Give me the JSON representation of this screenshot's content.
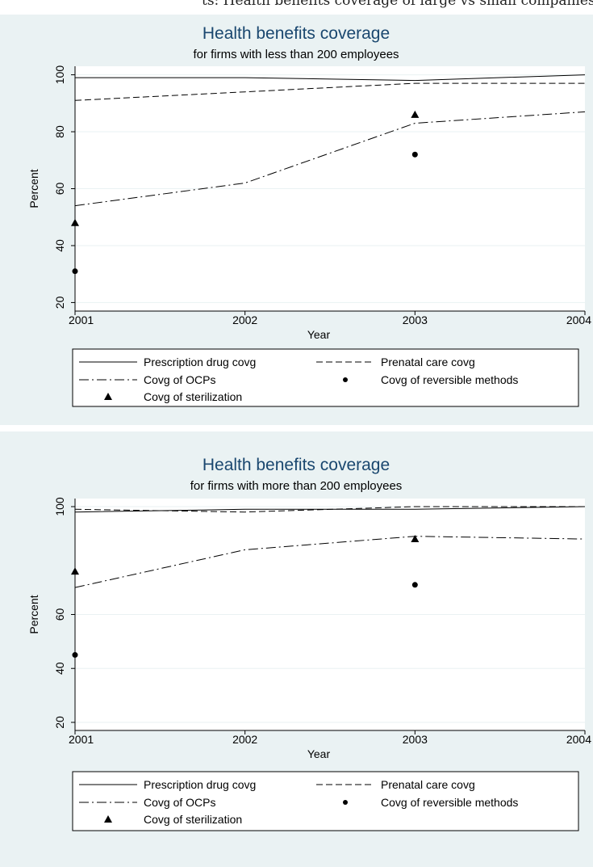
{
  "header_fragment": "ts: Health benefits coverage of large vs small companies",
  "legend_entries": [
    "Prescription drug covg",
    "Prenatal care covg",
    "Covg of OCPs",
    "Covg of reversible methods",
    "Covg of sterilization"
  ],
  "chart_data": [
    {
      "type": "line",
      "title": "Health benefits coverage",
      "subtitle": "for firms with less than 200 employees",
      "xlabel": "Year",
      "ylabel": "Percent",
      "x": [
        2001,
        2002,
        2003,
        2004
      ],
      "xlim": [
        2001,
        2004
      ],
      "ylim": [
        17,
        103
      ],
      "yticks": [
        20,
        40,
        60,
        80,
        100
      ],
      "grid": true,
      "legend_position": "bottom",
      "series": [
        {
          "name": "Prescription drug covg",
          "style": "solid",
          "points": [
            [
              2001,
              99
            ],
            [
              2002,
              99
            ],
            [
              2003,
              98
            ],
            [
              2004,
              100
            ]
          ]
        },
        {
          "name": "Prenatal care covg",
          "style": "dashed",
          "points": [
            [
              2001,
              91
            ],
            [
              2002,
              94
            ],
            [
              2003,
              97
            ],
            [
              2004,
              97
            ]
          ]
        },
        {
          "name": "Covg of OCPs",
          "style": "dashdot",
          "points": [
            [
              2001,
              54
            ],
            [
              2002,
              62
            ],
            [
              2003,
              83
            ],
            [
              2004,
              87
            ]
          ]
        },
        {
          "name": "Covg of reversible methods",
          "style": "circle",
          "points": [
            [
              2001,
              31
            ],
            [
              2003,
              72
            ]
          ]
        },
        {
          "name": "Covg of sterilization",
          "style": "triangle",
          "points": [
            [
              2001,
              48
            ],
            [
              2003,
              86
            ]
          ]
        }
      ]
    },
    {
      "type": "line",
      "title": "Health benefits coverage",
      "subtitle": "for firms with more than 200 employees",
      "xlabel": "Year",
      "ylabel": "Percent",
      "x": [
        2001,
        2002,
        2003,
        2004
      ],
      "xlim": [
        2001,
        2004
      ],
      "ylim": [
        17,
        103
      ],
      "yticks": [
        20,
        40,
        60,
        100
      ],
      "grid": true,
      "legend_position": "bottom",
      "series": [
        {
          "name": "Prescription drug covg",
          "style": "solid",
          "points": [
            [
              2001,
              98
            ],
            [
              2002,
              99
            ],
            [
              2003,
              99
            ],
            [
              2004,
              100
            ]
          ]
        },
        {
          "name": "Prenatal care covg",
          "style": "dashed",
          "points": [
            [
              2001,
              99
            ],
            [
              2002,
              98
            ],
            [
              2003,
              100
            ],
            [
              2004,
              100
            ]
          ]
        },
        {
          "name": "Covg of OCPs",
          "style": "dashdot",
          "points": [
            [
              2001,
              70
            ],
            [
              2002,
              84
            ],
            [
              2003,
              89
            ],
            [
              2004,
              88
            ]
          ]
        },
        {
          "name": "Covg of reversible methods",
          "style": "circle",
          "points": [
            [
              2001,
              45
            ],
            [
              2003,
              71
            ]
          ]
        },
        {
          "name": "Covg of sterilization",
          "style": "triangle",
          "points": [
            [
              2001,
              76
            ],
            [
              2003,
              88
            ]
          ]
        }
      ]
    }
  ]
}
